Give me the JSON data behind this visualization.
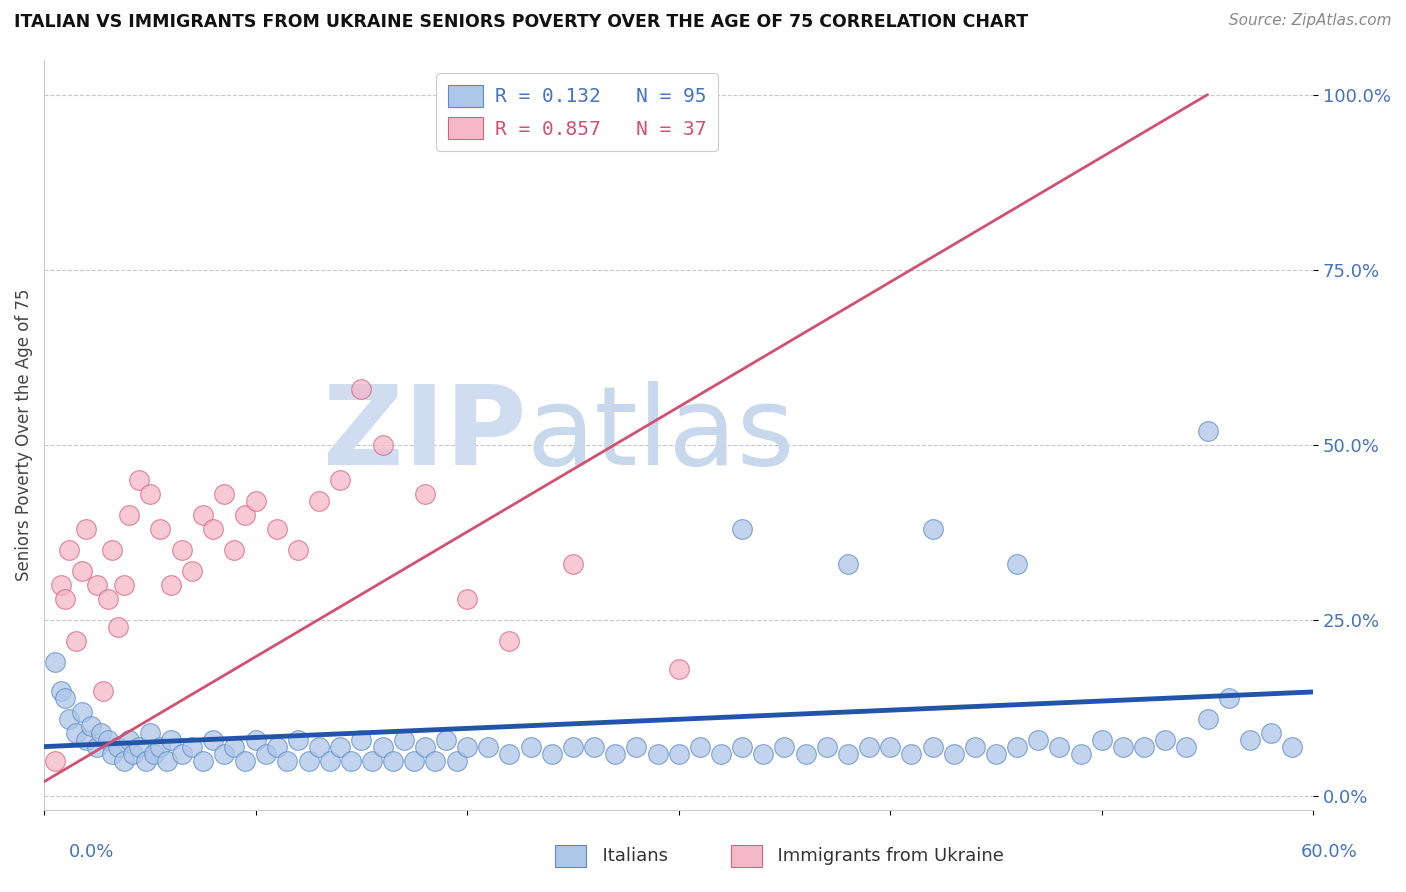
{
  "title": "ITALIAN VS IMMIGRANTS FROM UKRAINE SENIORS POVERTY OVER THE AGE OF 75 CORRELATION CHART",
  "source": "Source: ZipAtlas.com",
  "ylabel": "Seniors Poverty Over the Age of 75",
  "xlim": [
    0.0,
    0.6
  ],
  "ylim": [
    -0.02,
    1.05
  ],
  "yticks": [
    0.0,
    0.25,
    0.5,
    0.75,
    1.0
  ],
  "ytick_labels": [
    "0.0%",
    "25.0%",
    "50.0%",
    "75.0%",
    "100.0%"
  ],
  "legend_text_blue": "R = 0.132   N = 95",
  "legend_text_pink": "R = 0.857   N = 37",
  "blue_color": "#aec6e8",
  "blue_edge_color": "#5b8ac9",
  "pink_color": "#f4b8c8",
  "pink_edge_color": "#d96080",
  "blue_line_color": "#2255aa",
  "pink_line_color": "#d45070",
  "watermark_zip": "ZIP",
  "watermark_atlas": "atlas",
  "background_color": "#ffffff",
  "grid_color": "#c8c8c8",
  "blue_scatter_x": [
    0.005,
    0.008,
    0.01,
    0.012,
    0.015,
    0.018,
    0.02,
    0.022,
    0.025,
    0.027,
    0.03,
    0.032,
    0.035,
    0.038,
    0.04,
    0.042,
    0.045,
    0.048,
    0.05,
    0.052,
    0.055,
    0.058,
    0.06,
    0.065,
    0.07,
    0.075,
    0.08,
    0.085,
    0.09,
    0.095,
    0.1,
    0.105,
    0.11,
    0.115,
    0.12,
    0.125,
    0.13,
    0.135,
    0.14,
    0.145,
    0.15,
    0.155,
    0.16,
    0.165,
    0.17,
    0.175,
    0.18,
    0.185,
    0.19,
    0.195,
    0.2,
    0.21,
    0.22,
    0.23,
    0.24,
    0.25,
    0.26,
    0.27,
    0.28,
    0.29,
    0.3,
    0.31,
    0.32,
    0.33,
    0.34,
    0.35,
    0.36,
    0.37,
    0.38,
    0.39,
    0.4,
    0.41,
    0.42,
    0.43,
    0.44,
    0.45,
    0.46,
    0.47,
    0.48,
    0.49,
    0.5,
    0.51,
    0.52,
    0.53,
    0.54,
    0.55,
    0.56,
    0.57,
    0.58,
    0.59,
    0.33,
    0.46,
    0.55,
    0.42,
    0.38
  ],
  "blue_scatter_y": [
    0.19,
    0.15,
    0.14,
    0.11,
    0.09,
    0.12,
    0.08,
    0.1,
    0.07,
    0.09,
    0.08,
    0.06,
    0.07,
    0.05,
    0.08,
    0.06,
    0.07,
    0.05,
    0.09,
    0.06,
    0.07,
    0.05,
    0.08,
    0.06,
    0.07,
    0.05,
    0.08,
    0.06,
    0.07,
    0.05,
    0.08,
    0.06,
    0.07,
    0.05,
    0.08,
    0.05,
    0.07,
    0.05,
    0.07,
    0.05,
    0.08,
    0.05,
    0.07,
    0.05,
    0.08,
    0.05,
    0.07,
    0.05,
    0.08,
    0.05,
    0.07,
    0.07,
    0.06,
    0.07,
    0.06,
    0.07,
    0.07,
    0.06,
    0.07,
    0.06,
    0.06,
    0.07,
    0.06,
    0.07,
    0.06,
    0.07,
    0.06,
    0.07,
    0.06,
    0.07,
    0.07,
    0.06,
    0.07,
    0.06,
    0.07,
    0.06,
    0.07,
    0.08,
    0.07,
    0.06,
    0.08,
    0.07,
    0.07,
    0.08,
    0.07,
    0.11,
    0.14,
    0.08,
    0.09,
    0.07,
    0.38,
    0.33,
    0.52,
    0.38,
    0.33
  ],
  "pink_scatter_x": [
    0.005,
    0.008,
    0.01,
    0.012,
    0.015,
    0.018,
    0.02,
    0.025,
    0.028,
    0.03,
    0.032,
    0.035,
    0.038,
    0.04,
    0.045,
    0.05,
    0.055,
    0.06,
    0.065,
    0.07,
    0.075,
    0.08,
    0.085,
    0.09,
    0.095,
    0.1,
    0.11,
    0.12,
    0.13,
    0.14,
    0.15,
    0.16,
    0.18,
    0.2,
    0.22,
    0.25,
    0.3
  ],
  "pink_scatter_y": [
    0.05,
    0.3,
    0.28,
    0.35,
    0.22,
    0.32,
    0.38,
    0.3,
    0.15,
    0.28,
    0.35,
    0.24,
    0.3,
    0.4,
    0.45,
    0.43,
    0.38,
    0.3,
    0.35,
    0.32,
    0.4,
    0.38,
    0.43,
    0.35,
    0.4,
    0.42,
    0.38,
    0.35,
    0.42,
    0.45,
    0.58,
    0.5,
    0.43,
    0.28,
    0.22,
    0.33,
    0.18
  ],
  "blue_trend_x": [
    0.0,
    0.6
  ],
  "blue_trend_y": [
    0.07,
    0.148
  ],
  "pink_trend_x": [
    0.0,
    0.55
  ],
  "pink_trend_y": [
    0.02,
    1.0
  ]
}
